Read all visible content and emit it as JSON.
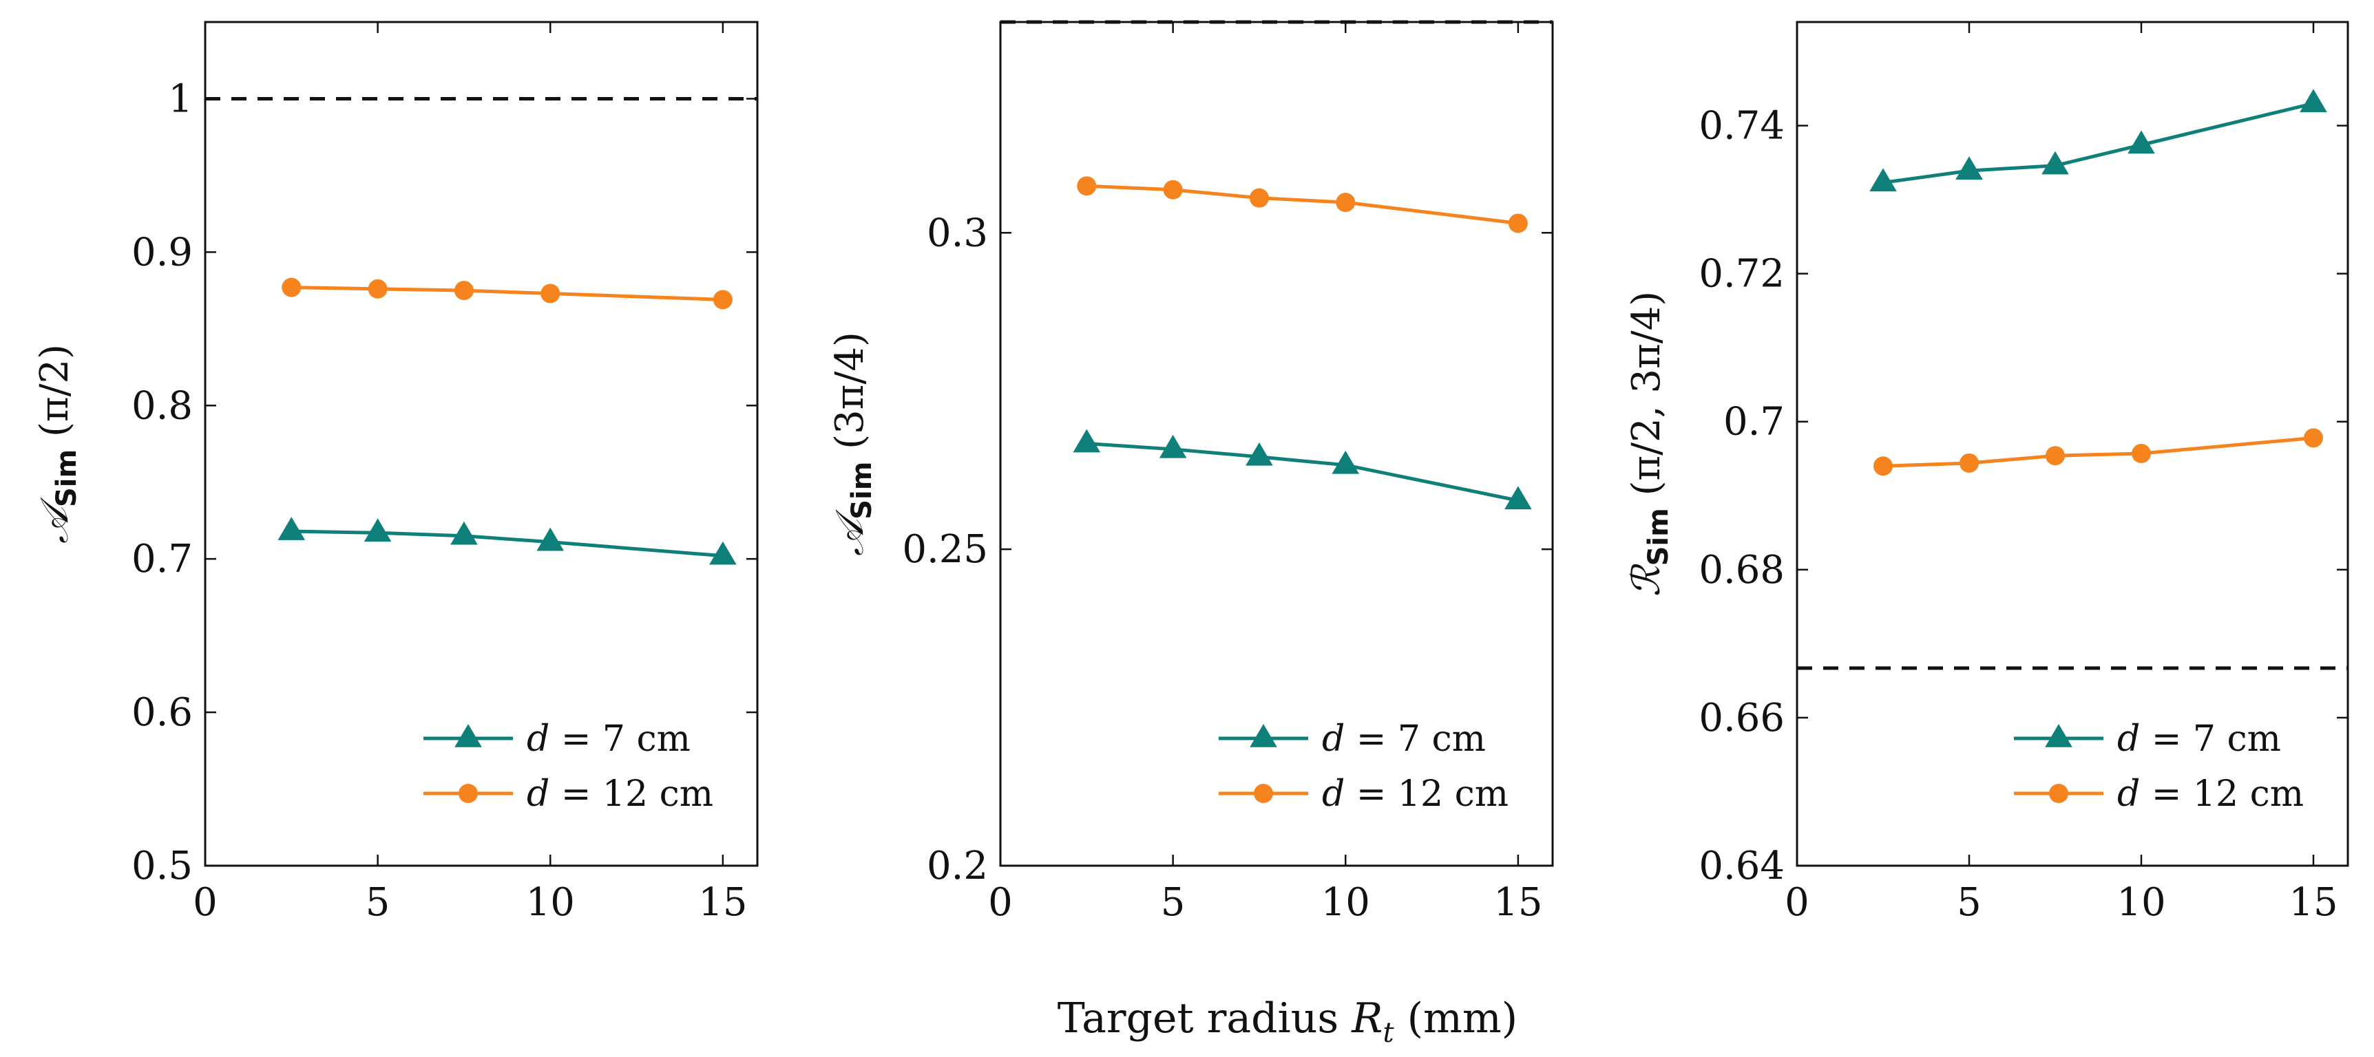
{
  "colors": {
    "teal": "#0f7f7a",
    "orange": "#f5841f",
    "frame": "#111111",
    "reference": "#111111"
  },
  "figure": {
    "shared_xlabel": "Target radius R_t (mm)"
  },
  "chart_data": [
    {
      "type": "line",
      "ylabel": "𝒜Sim (π/2)",
      "x": [
        2.5,
        5,
        7.5,
        10,
        15
      ],
      "xlim": [
        0,
        16
      ],
      "ylim": [
        0.5,
        1.05
      ],
      "xticks": [
        0,
        5,
        10,
        15
      ],
      "xtick_labels": [
        "0",
        "5",
        "10",
        "15"
      ],
      "yticks": [
        0.5,
        0.6,
        0.7,
        0.8,
        0.9,
        1.0
      ],
      "ytick_labels": [
        "0.5",
        "0.6",
        "0.7",
        "0.8",
        "0.9",
        "1"
      ],
      "reference_line": 1.0,
      "legend_position": "bottom-right",
      "series": [
        {
          "name": "d = 7 cm",
          "marker": "triangle",
          "color": "#0f7f7a",
          "values": [
            0.718,
            0.717,
            0.715,
            0.711,
            0.702
          ]
        },
        {
          "name": "d = 12 cm",
          "marker": "circle",
          "color": "#f5841f",
          "values": [
            0.877,
            0.876,
            0.875,
            0.873,
            0.869
          ]
        }
      ]
    },
    {
      "type": "line",
      "ylabel": "𝒜Sim (3π/4)",
      "x": [
        2.5,
        5,
        7.5,
        10,
        15
      ],
      "xlim": [
        0,
        16
      ],
      "ylim": [
        0.2,
        0.3333
      ],
      "xticks": [
        0,
        5,
        10,
        15
      ],
      "xtick_labels": [
        "0",
        "5",
        "10",
        "15"
      ],
      "yticks": [
        0.2,
        0.25,
        0.3
      ],
      "ytick_labels": [
        "0.2",
        "0.25",
        "0.3"
      ],
      "reference_line": 0.3333,
      "legend_position": "bottom-right",
      "series": [
        {
          "name": "d = 7 cm",
          "marker": "triangle",
          "color": "#0f7f7a",
          "values": [
            0.2667,
            0.2658,
            0.2646,
            0.2633,
            0.2577
          ]
        },
        {
          "name": "d = 12 cm",
          "marker": "circle",
          "color": "#f5841f",
          "values": [
            0.3074,
            0.3068,
            0.3055,
            0.3048,
            0.3015
          ]
        }
      ]
    },
    {
      "type": "line",
      "ylabel": "ℛSim (π/2, 3π/4)",
      "x": [
        2.5,
        5,
        7.5,
        10,
        15
      ],
      "xlim": [
        0,
        16
      ],
      "ylim": [
        0.64,
        0.754
      ],
      "xticks": [
        0,
        5,
        10,
        15
      ],
      "xtick_labels": [
        "0",
        "5",
        "10",
        "15"
      ],
      "yticks": [
        0.64,
        0.66,
        0.68,
        0.7,
        0.72,
        0.74
      ],
      "ytick_labels": [
        "0.64",
        "0.66",
        "0.68",
        "0.7",
        "0.72",
        "0.74"
      ],
      "reference_line": 0.6667,
      "legend_position": "bottom-right",
      "series": [
        {
          "name": "d = 7 cm",
          "marker": "triangle",
          "color": "#0f7f7a",
          "values": [
            0.7323,
            0.7339,
            0.7346,
            0.7374,
            0.743
          ]
        },
        {
          "name": "d = 12 cm",
          "marker": "circle",
          "color": "#f5841f",
          "values": [
            0.694,
            0.6944,
            0.6954,
            0.6957,
            0.6978
          ]
        }
      ]
    }
  ]
}
